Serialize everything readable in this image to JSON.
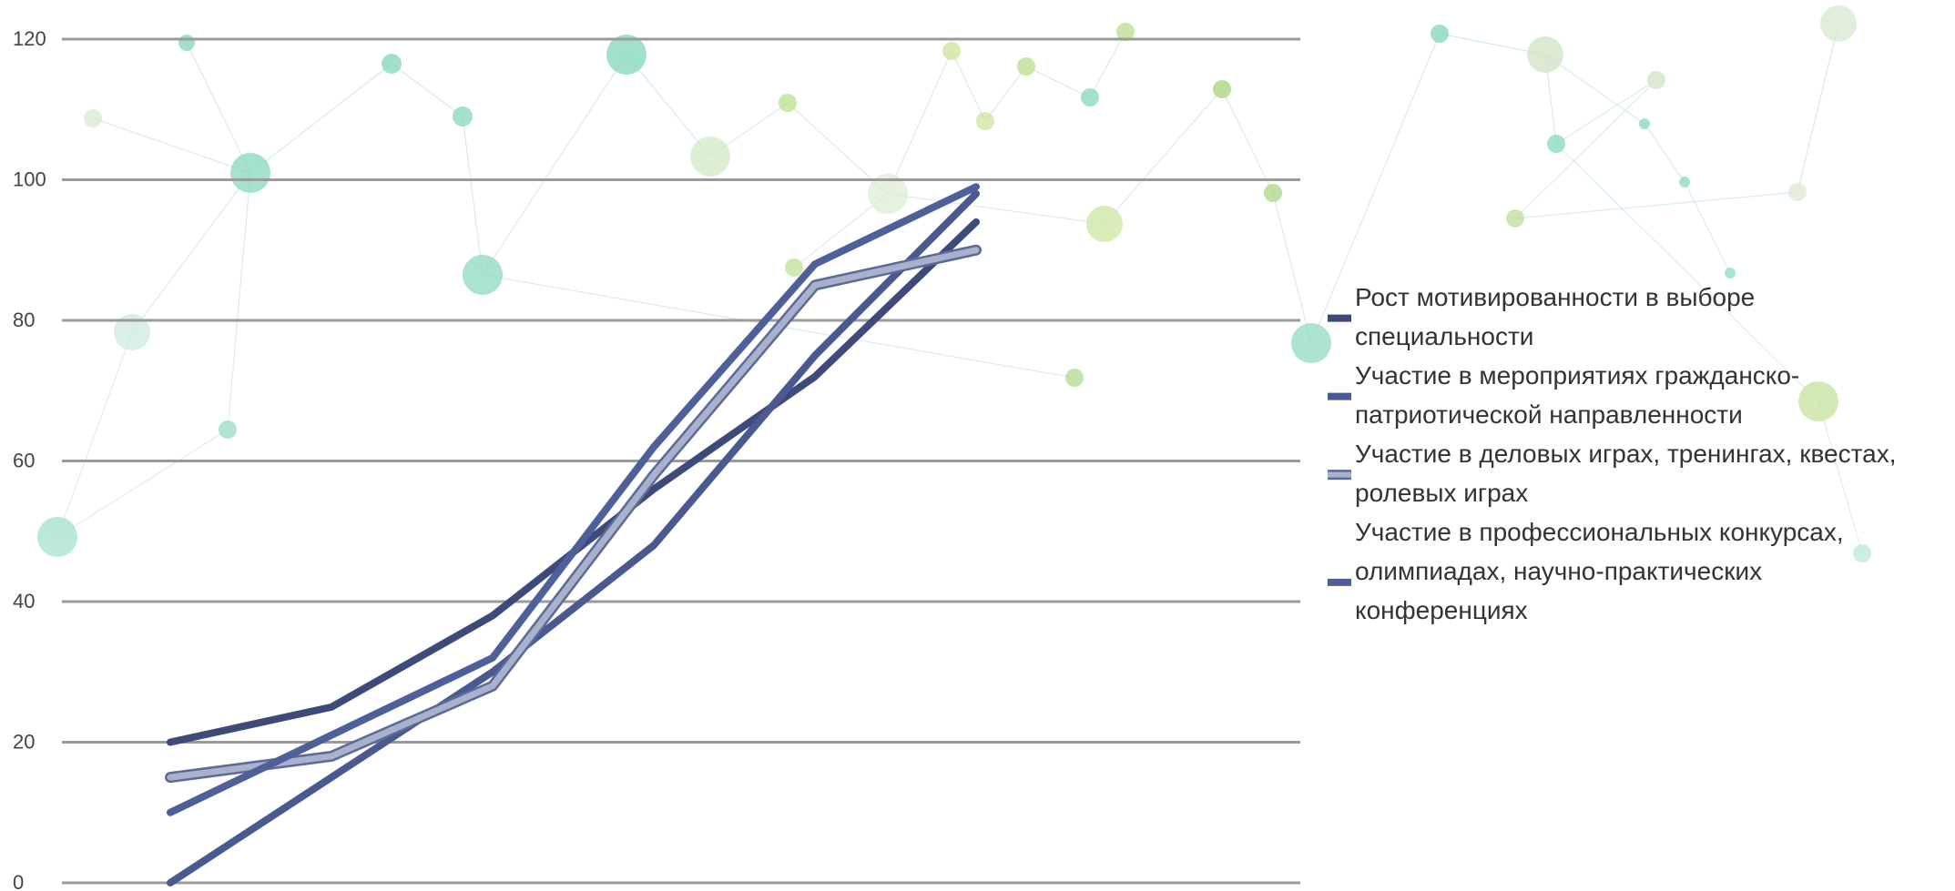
{
  "chart_data": {
    "type": "line",
    "title": "",
    "xlabel": "",
    "ylabel": "",
    "ylim": [
      0,
      120
    ],
    "yticks": [
      "0",
      "20",
      "40",
      "60",
      "80",
      "100",
      "120"
    ],
    "grid": true,
    "legend_position": "right",
    "x": [
      1,
      2,
      3,
      4,
      5,
      6,
      7
    ],
    "series": [
      {
        "name": "Рост мотивированности в выборе специальности",
        "legend_lines": [
          "Рост мотивированности в выборе",
          "специальности"
        ],
        "color": "#3d4a7a",
        "values": [
          20,
          25,
          38,
          56,
          72,
          94,
          null
        ]
      },
      {
        "name": "Участие в мероприятиях гражданско-патриотической направленности",
        "legend_lines": [
          "Участие в мероприятиях гражданско-",
          "патриотической направленности"
        ],
        "color": "#4a5a90",
        "values": [
          0,
          15,
          30,
          48,
          75,
          98,
          null
        ]
      },
      {
        "name": "Участие в деловых играх, тренингах, квестах, ролевых играх",
        "legend_lines": [
          "Участие в деловых играх, тренингах, квестах,",
          "ролевых играх"
        ],
        "color": "#a9b2cc",
        "values": [
          15,
          18,
          28,
          58,
          85,
          90,
          null
        ]
      },
      {
        "name": "Участие в профессиональных конкурсах, олимпиадах, научно-практических конференциях",
        "legend_lines": [
          "Участие в профессиональных конкурсах,",
          "олимпиадах, научно-практических",
          "конференциях"
        ],
        "color": "#4f5f99",
        "values": [
          10,
          21,
          32,
          62,
          88,
          99,
          null
        ]
      }
    ]
  }
}
